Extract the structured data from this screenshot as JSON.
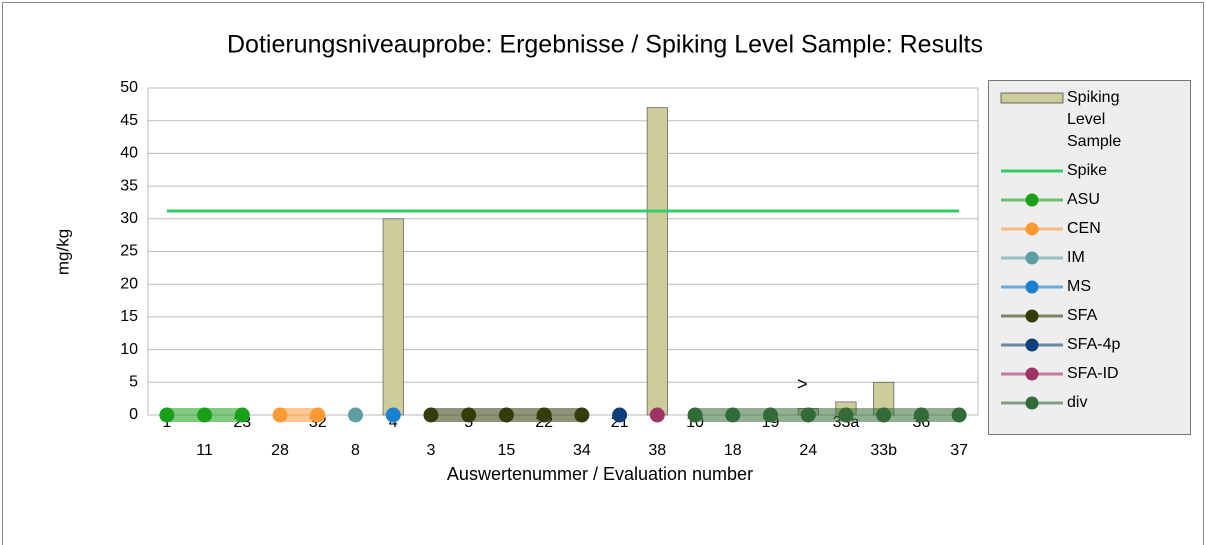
{
  "chart_data": {
    "type": "combo",
    "title": "Dotierungsniveauprobe: Ergebnisse / Spiking Level Sample: Results",
    "xlabel": "Auswertenummer / Evaluation number",
    "ylabel": "mg/kg",
    "categories": [
      "1",
      "11",
      "23",
      "28",
      "32",
      "8",
      "4",
      "3",
      "5",
      "15",
      "22",
      "34",
      "21",
      "38",
      "10",
      "18",
      "19",
      "24",
      "33a",
      "33b",
      "36",
      "37"
    ],
    "ylim": [
      0,
      50
    ],
    "yticks": [
      0,
      5,
      10,
      15,
      20,
      25,
      30,
      35,
      40,
      45,
      50
    ],
    "grid": true,
    "legend": "right",
    "annotations": [
      {
        "text": ">",
        "category": "24"
      }
    ],
    "series": [
      {
        "name": "Spiking Level Sample",
        "type": "bar",
        "color": "#cccc99",
        "values": [
          0,
          0,
          0,
          0,
          0,
          0,
          30,
          0,
          0,
          0,
          0,
          0,
          0,
          47,
          0,
          0,
          0,
          1,
          2,
          5,
          0,
          0
        ]
      },
      {
        "name": "Spike",
        "type": "line",
        "color": "#33cc66",
        "values": [
          31.2,
          31.2,
          31.2,
          31.2,
          31.2,
          31.2,
          31.2,
          31.2,
          31.2,
          31.2,
          31.2,
          31.2,
          31.2,
          31.2,
          31.2,
          31.2,
          31.2,
          31.2,
          31.2,
          31.2,
          31.2,
          31.2
        ]
      },
      {
        "name": "ASU",
        "type": "line",
        "marker": true,
        "color": "#19a019",
        "values": [
          0,
          0,
          0,
          null,
          null,
          null,
          null,
          null,
          null,
          null,
          null,
          null,
          null,
          null,
          null,
          null,
          null,
          null,
          null,
          null,
          null,
          null
        ]
      },
      {
        "name": "CEN",
        "type": "line",
        "marker": true,
        "color": "#ff9933",
        "values": [
          null,
          null,
          null,
          0,
          0,
          null,
          null,
          null,
          null,
          null,
          null,
          null,
          null,
          null,
          null,
          null,
          null,
          null,
          null,
          null,
          null,
          null
        ]
      },
      {
        "name": "IM",
        "type": "line",
        "marker": true,
        "color": "#5f9ea0",
        "values": [
          null,
          null,
          null,
          null,
          null,
          0,
          null,
          null,
          null,
          null,
          null,
          null,
          null,
          null,
          null,
          null,
          null,
          null,
          null,
          null,
          null,
          null
        ]
      },
      {
        "name": "MS",
        "type": "line",
        "marker": true,
        "color": "#1a80d0",
        "values": [
          null,
          null,
          null,
          null,
          null,
          null,
          0,
          null,
          null,
          null,
          null,
          null,
          null,
          null,
          null,
          null,
          null,
          null,
          null,
          null,
          null,
          null
        ]
      },
      {
        "name": "SFA",
        "type": "line",
        "marker": true,
        "color": "#333d0a",
        "values": [
          null,
          null,
          null,
          null,
          null,
          null,
          null,
          0,
          0,
          0,
          0,
          0,
          null,
          null,
          null,
          null,
          null,
          null,
          null,
          null,
          null,
          null
        ]
      },
      {
        "name": "SFA-4p",
        "type": "line",
        "marker": true,
        "color": "#0d3f7a",
        "values": [
          null,
          null,
          null,
          null,
          null,
          null,
          null,
          null,
          null,
          null,
          null,
          null,
          0,
          null,
          null,
          null,
          null,
          null,
          null,
          null,
          null,
          null
        ]
      },
      {
        "name": "SFA-ID",
        "type": "line",
        "marker": true,
        "color": "#a03366",
        "values": [
          null,
          null,
          null,
          null,
          null,
          null,
          null,
          null,
          null,
          null,
          null,
          null,
          null,
          0,
          null,
          null,
          null,
          null,
          null,
          null,
          null,
          null
        ]
      },
      {
        "name": "div",
        "type": "line",
        "marker": true,
        "color": "#336b38",
        "values": [
          null,
          null,
          null,
          null,
          null,
          null,
          null,
          null,
          null,
          null,
          null,
          null,
          null,
          null,
          0,
          0,
          0,
          0,
          0,
          0,
          0,
          0
        ]
      }
    ]
  }
}
